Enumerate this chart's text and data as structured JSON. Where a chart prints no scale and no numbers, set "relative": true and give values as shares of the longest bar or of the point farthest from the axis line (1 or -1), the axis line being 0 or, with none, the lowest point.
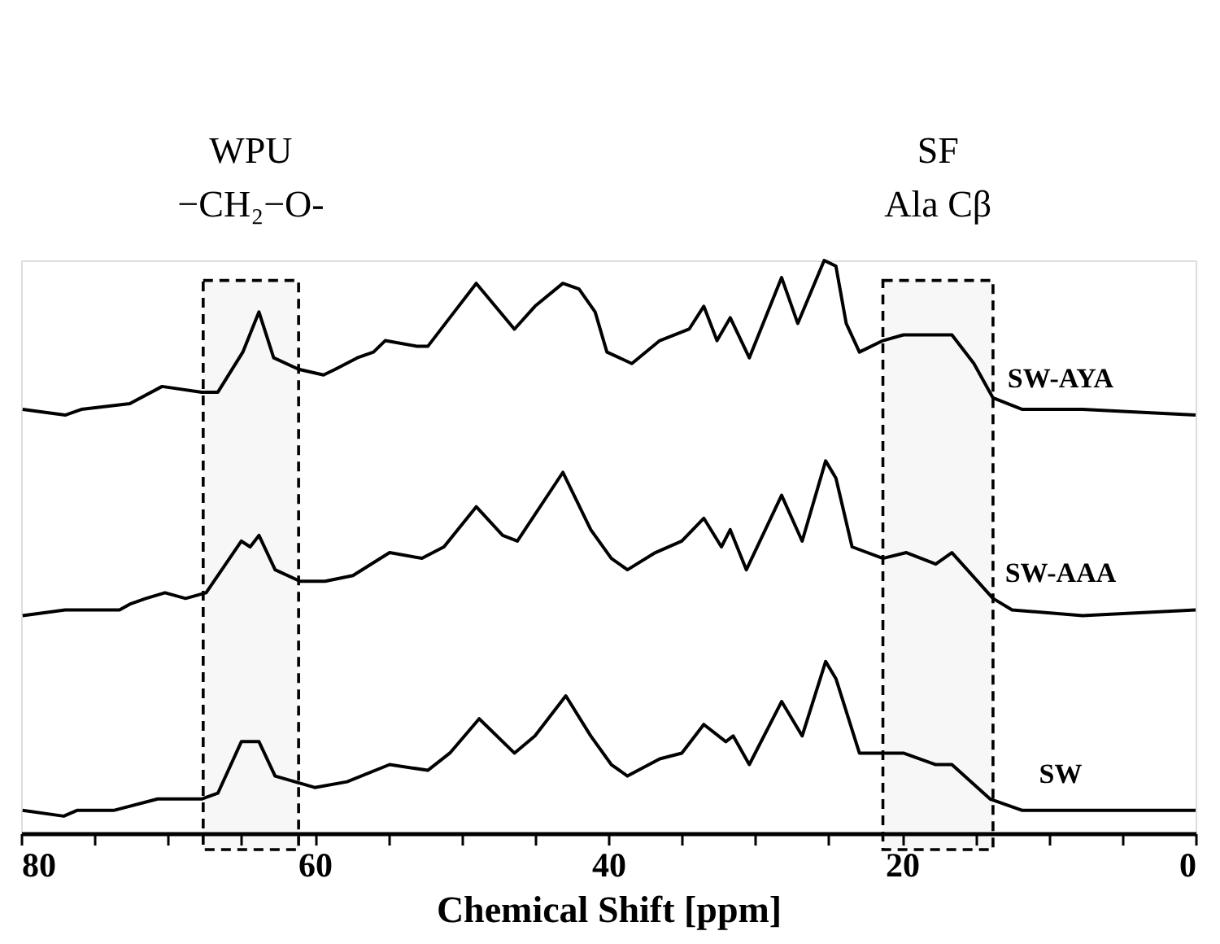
{
  "chart_data": {
    "type": "line",
    "xlabel": "Chemical Shift [ppm]",
    "relative": true,
    "legend": false,
    "xlim": [
      80,
      0
    ],
    "xticks": [
      80,
      {
        "value": 75,
        "label": null
      },
      {
        "value": 70,
        "label": null
      },
      {
        "value": 65,
        "label": null
      },
      60,
      {
        "value": 55,
        "label": null
      },
      {
        "value": 50,
        "label": null
      },
      {
        "value": 45,
        "label": null
      },
      40,
      {
        "value": 35,
        "label": null
      },
      {
        "value": 30,
        "label": null
      },
      {
        "value": 25,
        "label": null
      },
      20,
      {
        "value": 15,
        "label": null
      },
      {
        "value": 10,
        "label": null
      },
      {
        "value": 5,
        "label": null
      },
      0
    ],
    "bands": [
      {
        "axis": "x",
        "from": 67.6,
        "to": 61.1,
        "label": "WPU\n−CH₂−O-",
        "color": "#000000"
      },
      {
        "axis": "x",
        "from": 21.3,
        "to": 13.8,
        "label": "SF\nAla Cβ",
        "color": "#000000"
      }
    ],
    "series": [
      {
        "name": "SW-AYA",
        "color": "#000000",
        "x": [
          79.9,
          77.0,
          75.9,
          72.6,
          70.4,
          67.7,
          66.6,
          64.9,
          63.8,
          62.8,
          61.1,
          59.4,
          58.6,
          57.1,
          56.0,
          55.2,
          53.0,
          52.3,
          50.8,
          49.0,
          46.4,
          45.0,
          43.1,
          42.0,
          40.9,
          40.1,
          38.4,
          36.5,
          34.5,
          33.5,
          32.6,
          31.7,
          30.4,
          28.2,
          27.1,
          25.3,
          24.5,
          23.8,
          22.9,
          21.3,
          19.9,
          18.0,
          16.6,
          15.1,
          13.8,
          11.8,
          7.7,
          0
        ],
        "values": [
          0.74,
          0.73,
          0.74,
          0.75,
          0.78,
          0.77,
          0.77,
          0.84,
          0.91,
          0.83,
          0.81,
          0.8,
          0.81,
          0.83,
          0.84,
          0.86,
          0.85,
          0.85,
          0.9,
          0.96,
          0.88,
          0.92,
          0.96,
          0.95,
          0.91,
          0.84,
          0.82,
          0.86,
          0.88,
          0.92,
          0.86,
          0.9,
          0.83,
          0.97,
          0.89,
          1.0,
          0.99,
          0.89,
          0.84,
          0.86,
          0.87,
          0.87,
          0.87,
          0.82,
          0.76,
          0.74,
          0.74,
          0.73
        ]
      },
      {
        "name": "SW-AAA",
        "color": "#000000",
        "x": [
          79.9,
          77.0,
          73.3,
          72.6,
          71.5,
          70.2,
          68.8,
          67.4,
          65.0,
          64.4,
          63.8,
          62.7,
          61.0,
          59.3,
          57.4,
          54.9,
          52.7,
          51.2,
          49.0,
          47.2,
          46.2,
          43.1,
          41.2,
          39.8,
          38.7,
          36.8,
          35.0,
          33.5,
          32.3,
          31.7,
          30.6,
          28.2,
          26.8,
          25.2,
          24.5,
          23.4,
          21.3,
          19.7,
          17.7,
          16.6,
          13.8,
          12.5,
          7.7,
          0
        ],
        "values": [
          0.38,
          0.39,
          0.39,
          0.4,
          0.41,
          0.42,
          0.41,
          0.42,
          0.51,
          0.5,
          0.52,
          0.46,
          0.44,
          0.44,
          0.45,
          0.49,
          0.48,
          0.5,
          0.57,
          0.52,
          0.51,
          0.63,
          0.53,
          0.48,
          0.46,
          0.49,
          0.51,
          0.55,
          0.5,
          0.53,
          0.46,
          0.59,
          0.51,
          0.65,
          0.62,
          0.5,
          0.48,
          0.49,
          0.47,
          0.49,
          0.41,
          0.39,
          0.38,
          0.39
        ]
      },
      {
        "name": "SW",
        "color": "#000000",
        "x": [
          79.9,
          77.1,
          76.2,
          73.7,
          70.7,
          67.7,
          66.6,
          65.0,
          64.4,
          63.8,
          62.7,
          60.0,
          57.8,
          54.9,
          52.3,
          50.8,
          48.8,
          46.4,
          45.0,
          42.9,
          41.2,
          39.8,
          38.7,
          36.5,
          35.0,
          33.5,
          32.0,
          31.5,
          30.4,
          28.2,
          26.8,
          25.2,
          24.5,
          22.9,
          19.9,
          17.7,
          16.6,
          14.0,
          11.8,
          0
        ],
        "values": [
          0.04,
          0.03,
          0.04,
          0.04,
          0.06,
          0.06,
          0.07,
          0.16,
          0.16,
          0.16,
          0.1,
          0.08,
          0.09,
          0.12,
          0.11,
          0.14,
          0.2,
          0.14,
          0.17,
          0.24,
          0.17,
          0.12,
          0.1,
          0.13,
          0.14,
          0.19,
          0.16,
          0.17,
          0.12,
          0.23,
          0.17,
          0.3,
          0.27,
          0.14,
          0.14,
          0.12,
          0.12,
          0.06,
          0.04,
          0.04
        ]
      }
    ]
  }
}
